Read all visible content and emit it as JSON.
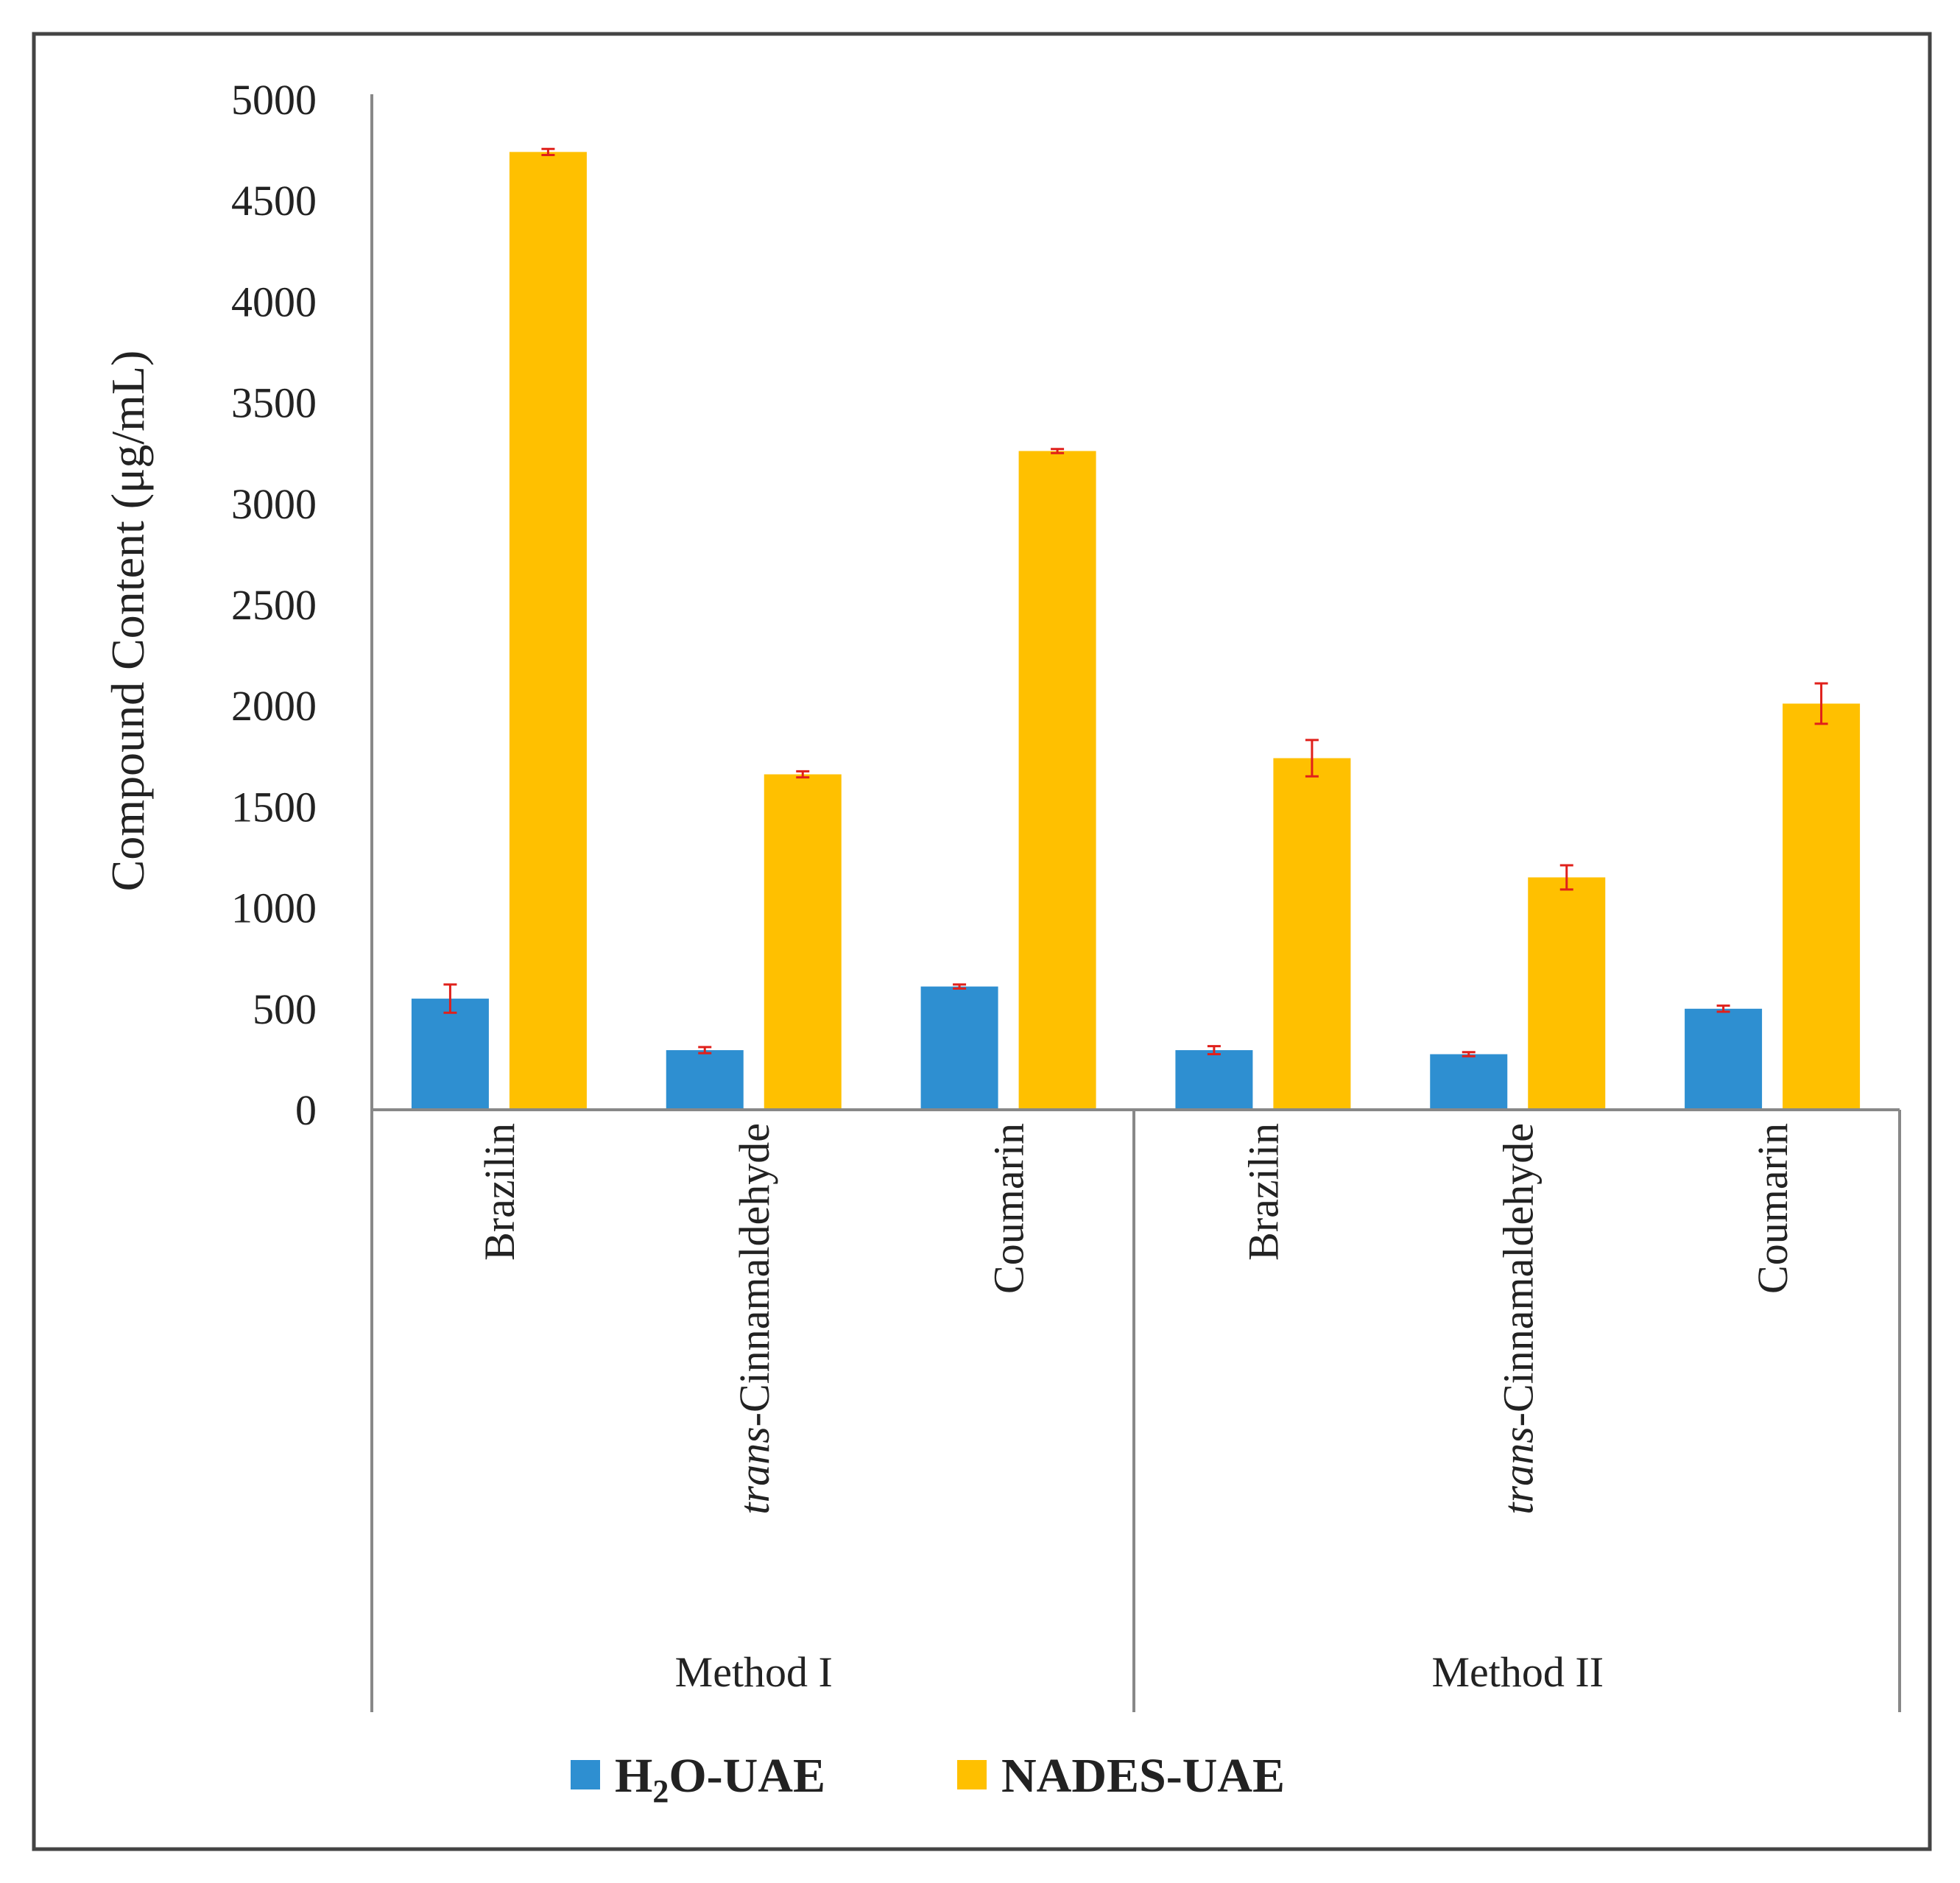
{
  "chart_data": {
    "type": "bar",
    "ylabel": "Compound Content (μg/mL)",
    "ylim": [
      0,
      5000
    ],
    "yticks": [
      0,
      500,
      1000,
      1500,
      2000,
      2500,
      3000,
      3500,
      4000,
      4500,
      5000
    ],
    "ytick_labels": [
      "0",
      "500",
      "1000",
      "1500",
      "2000",
      "2500",
      "3000",
      "3500",
      "4000",
      "4500",
      "5000"
    ],
    "groups": [
      {
        "label": "Method I",
        "categories": [
          {
            "name": "Brazilin"
          },
          {
            "prefix": "trans",
            "name": "-Cinnamaldehyde"
          },
          {
            "name": "Coumarin"
          }
        ]
      },
      {
        "label": "Method II",
        "categories": [
          {
            "name": "Brazilin"
          },
          {
            "prefix": "trans",
            "name": "-Cinnamaldehyde"
          },
          {
            "name": "Coumarin"
          }
        ]
      }
    ],
    "series": [
      {
        "name": "H2O-UAE",
        "legend": {
          "main": "H",
          "sub": "2",
          "rest": "O-UAE"
        },
        "color": "#2e8fd1",
        "values": [
          550,
          295,
          610,
          295,
          275,
          500
        ],
        "errors": [
          70,
          15,
          10,
          20,
          10,
          15
        ]
      },
      {
        "name": "NADES-UAE",
        "legend": {
          "main": "NADES-UAE",
          "sub": "",
          "rest": ""
        },
        "color": "#ffc000",
        "values": [
          4740,
          1660,
          3260,
          1740,
          1150,
          2010
        ],
        "errors": [
          15,
          15,
          10,
          90,
          60,
          100
        ]
      }
    ],
    "error_color": "#e0201b",
    "grid": false,
    "legend_position": "bottom"
  }
}
